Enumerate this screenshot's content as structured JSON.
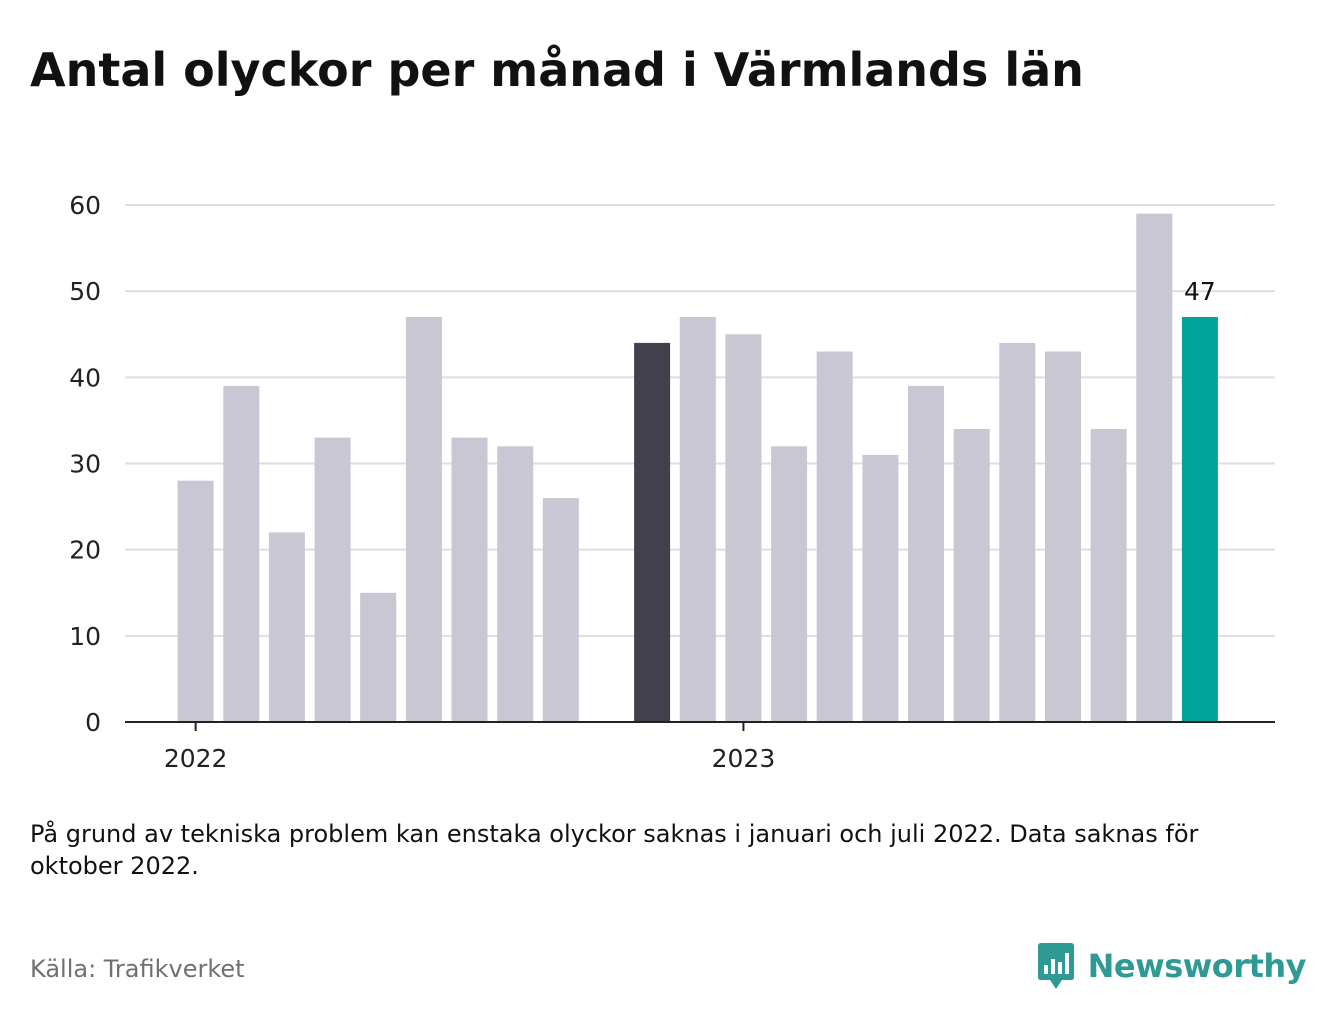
{
  "title": "Antal olyckor per månad i Värmlands län",
  "note": "På grund av tekniska problem kan enstaka olyckor saknas i januari och juli 2022. Data saknas för oktober 2022.",
  "source": "Källa: Trafikverket",
  "brand": {
    "name": "Newsworthy",
    "icon": "newsworthy-chart-bubble-icon",
    "color": "#2f9a94"
  },
  "colors": {
    "default_bar": "#c8c7d3",
    "highlight_bar": "#42404d",
    "latest_bar": "#00a49a",
    "grid": "#dedede",
    "axis": "#222222"
  },
  "chart_data": {
    "type": "bar",
    "title": "Antal olyckor per månad i Värmlands län",
    "xlabel": "",
    "ylabel": "",
    "ylim": [
      0,
      60
    ],
    "yticks": [
      "0",
      "10",
      "20",
      "30",
      "40",
      "50",
      "60"
    ],
    "xticks": [
      "2022",
      "2023"
    ],
    "grid": true,
    "legend": "none",
    "months": [
      {
        "month": "2022-01",
        "value": 28,
        "style": "default"
      },
      {
        "month": "2022-02",
        "value": 39,
        "style": "default"
      },
      {
        "month": "2022-03",
        "value": 22,
        "style": "default"
      },
      {
        "month": "2022-04",
        "value": 33,
        "style": "default"
      },
      {
        "month": "2022-05",
        "value": 15,
        "style": "default"
      },
      {
        "month": "2022-06",
        "value": 47,
        "style": "default"
      },
      {
        "month": "2022-07",
        "value": 33,
        "style": "default"
      },
      {
        "month": "2022-08",
        "value": 32,
        "style": "default"
      },
      {
        "month": "2022-09",
        "value": 26,
        "style": "default"
      },
      {
        "month": "2022-10",
        "value": null,
        "style": "default"
      },
      {
        "month": "2022-11",
        "value": 44,
        "style": "highlight"
      },
      {
        "month": "2022-12",
        "value": 47,
        "style": "default"
      },
      {
        "month": "2023-01",
        "value": 45,
        "style": "default"
      },
      {
        "month": "2023-02",
        "value": 32,
        "style": "default"
      },
      {
        "month": "2023-03",
        "value": 43,
        "style": "default"
      },
      {
        "month": "2023-04",
        "value": 31,
        "style": "default"
      },
      {
        "month": "2023-05",
        "value": 39,
        "style": "default"
      },
      {
        "month": "2023-06",
        "value": 34,
        "style": "default"
      },
      {
        "month": "2023-07",
        "value": 44,
        "style": "default"
      },
      {
        "month": "2023-08",
        "value": 43,
        "style": "default"
      },
      {
        "month": "2023-09",
        "value": 34,
        "style": "default"
      },
      {
        "month": "2023-10",
        "value": 59,
        "style": "default"
      },
      {
        "month": "2023-11",
        "value": 47,
        "style": "latest"
      }
    ],
    "annotations": [
      {
        "month": "2023-11",
        "text": "47"
      }
    ]
  }
}
